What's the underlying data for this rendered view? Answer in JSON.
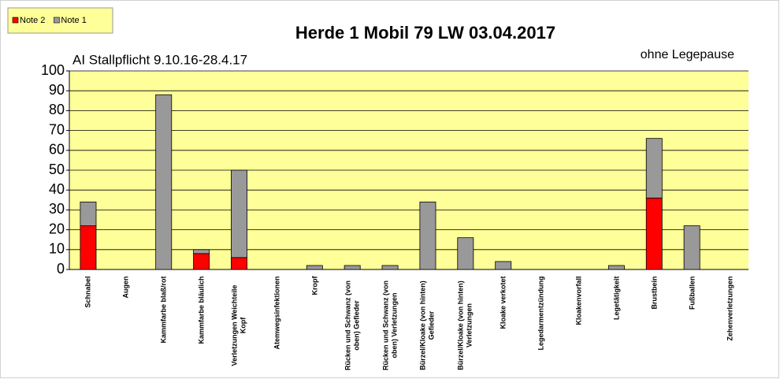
{
  "chart_data": {
    "type": "stacked_bar",
    "title": "Herde 1 Mobil 79 LW 03.04.2017",
    "annotations": [
      "AI Stallpflicht 9.10.16-28.4.17",
      "ohne Legepause"
    ],
    "categories": [
      "Schnabel",
      "Augen",
      "Kammfarbe blaß/rot",
      "Kammfarbe bläulich",
      "Verletzungen Weichteile Kopf",
      "Atemwegsinfektionen",
      "Kropf",
      "Rücken und Schwanz (von oben) Gefieder",
      "Rücken und Schwanz (von oben) Verletzungen",
      "Bürzel/Kloake (von hinten) Gefieder",
      "Bürzel/Kloake (von hinten) Verletzungen",
      "Kloake verkotet",
      "Legedarmentzündung",
      "Kloakenvorfall",
      "Legetätigkeit",
      "Brustbein",
      "Fußballen",
      "Zehenverletzungen"
    ],
    "series": [
      {
        "name": "Note 2",
        "color": "#ff0000",
        "values": [
          22,
          0,
          0,
          8,
          6,
          0,
          0,
          0,
          0,
          0,
          0,
          0,
          0,
          0,
          0,
          36,
          0,
          0
        ]
      },
      {
        "name": "Note 1",
        "color": "#999999",
        "values": [
          12,
          0,
          88,
          2,
          44,
          0,
          2,
          2,
          2,
          34,
          16,
          4,
          0,
          0,
          2,
          30,
          22,
          0
        ]
      }
    ],
    "ylim": [
      0,
      100
    ],
    "yticks": [
      0,
      10,
      20,
      30,
      40,
      50,
      60,
      70,
      80,
      90,
      100
    ],
    "grid": true,
    "legend": "top-left"
  }
}
